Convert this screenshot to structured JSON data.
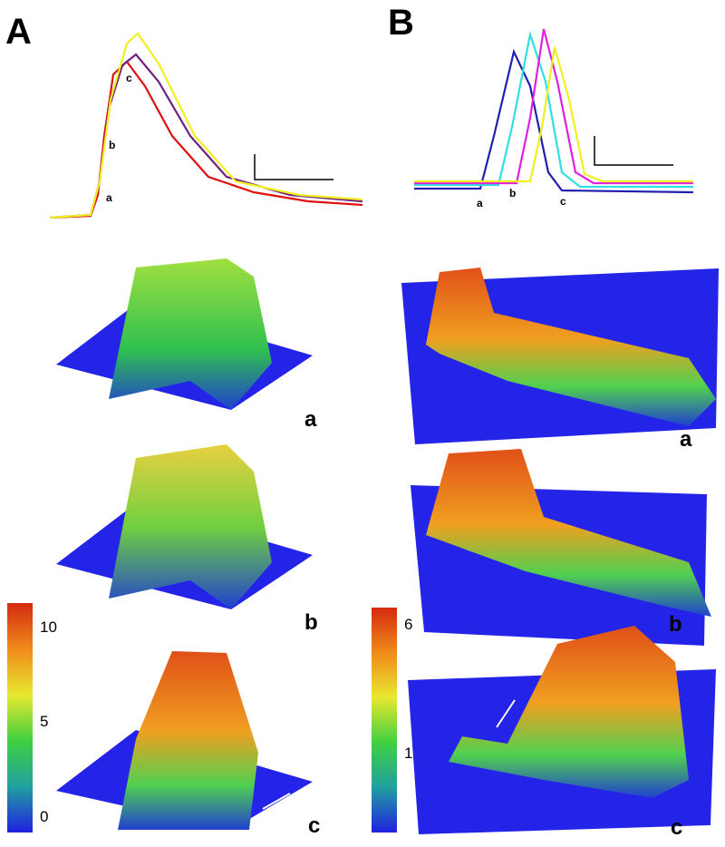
{
  "panels": [
    {
      "label": "A",
      "trace_labels": [
        "a",
        "b",
        "c"
      ],
      "surface_labels": [
        "a",
        "b",
        "c"
      ],
      "colorbar_ticks": [
        "10",
        "5",
        "0"
      ]
    },
    {
      "label": "B",
      "trace_labels": [
        "a",
        "b",
        "c"
      ],
      "surface_labels": [
        "a",
        "b",
        "c"
      ],
      "colorbar_ticks": [
        "6",
        "1"
      ]
    }
  ]
}
